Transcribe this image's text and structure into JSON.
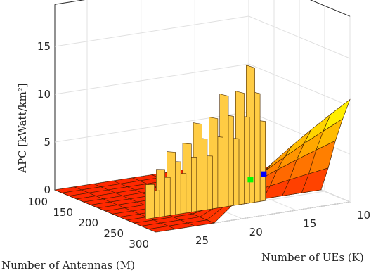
{
  "chart_data": {
    "type": "surface",
    "xlabel": "Number of Antennas (M)",
    "ylabel": "Number of UEs (K)",
    "zlabel": "APC [kWatt/km²]",
    "x_ticks": [
      "100",
      "150",
      "200",
      "250",
      "300"
    ],
    "y_ticks": [
      "10",
      "15",
      "20",
      "25"
    ],
    "z_ticks": [
      "0",
      "5",
      "10",
      "15"
    ],
    "xlim": [
      100,
      300
    ],
    "ylim": [
      10,
      28
    ],
    "zlim": [
      0,
      16
    ],
    "grid": true,
    "colormap": "autumn",
    "surface_description_values": {
      "x_min": 100,
      "x_max": 300,
      "y_min": 10,
      "y_max": 28,
      "z_at_M100_K10": 0,
      "z_at_M300_K10": 9.5,
      "z_at_M300_K28": 0,
      "spike_peak": 15.5
    },
    "markers": [
      {
        "color": "#0000ff",
        "M": 300,
        "K": 18,
        "z": 4.3
      },
      {
        "color": "#00ff00",
        "M": 295,
        "K": 19,
        "z": 3.8
      }
    ]
  }
}
